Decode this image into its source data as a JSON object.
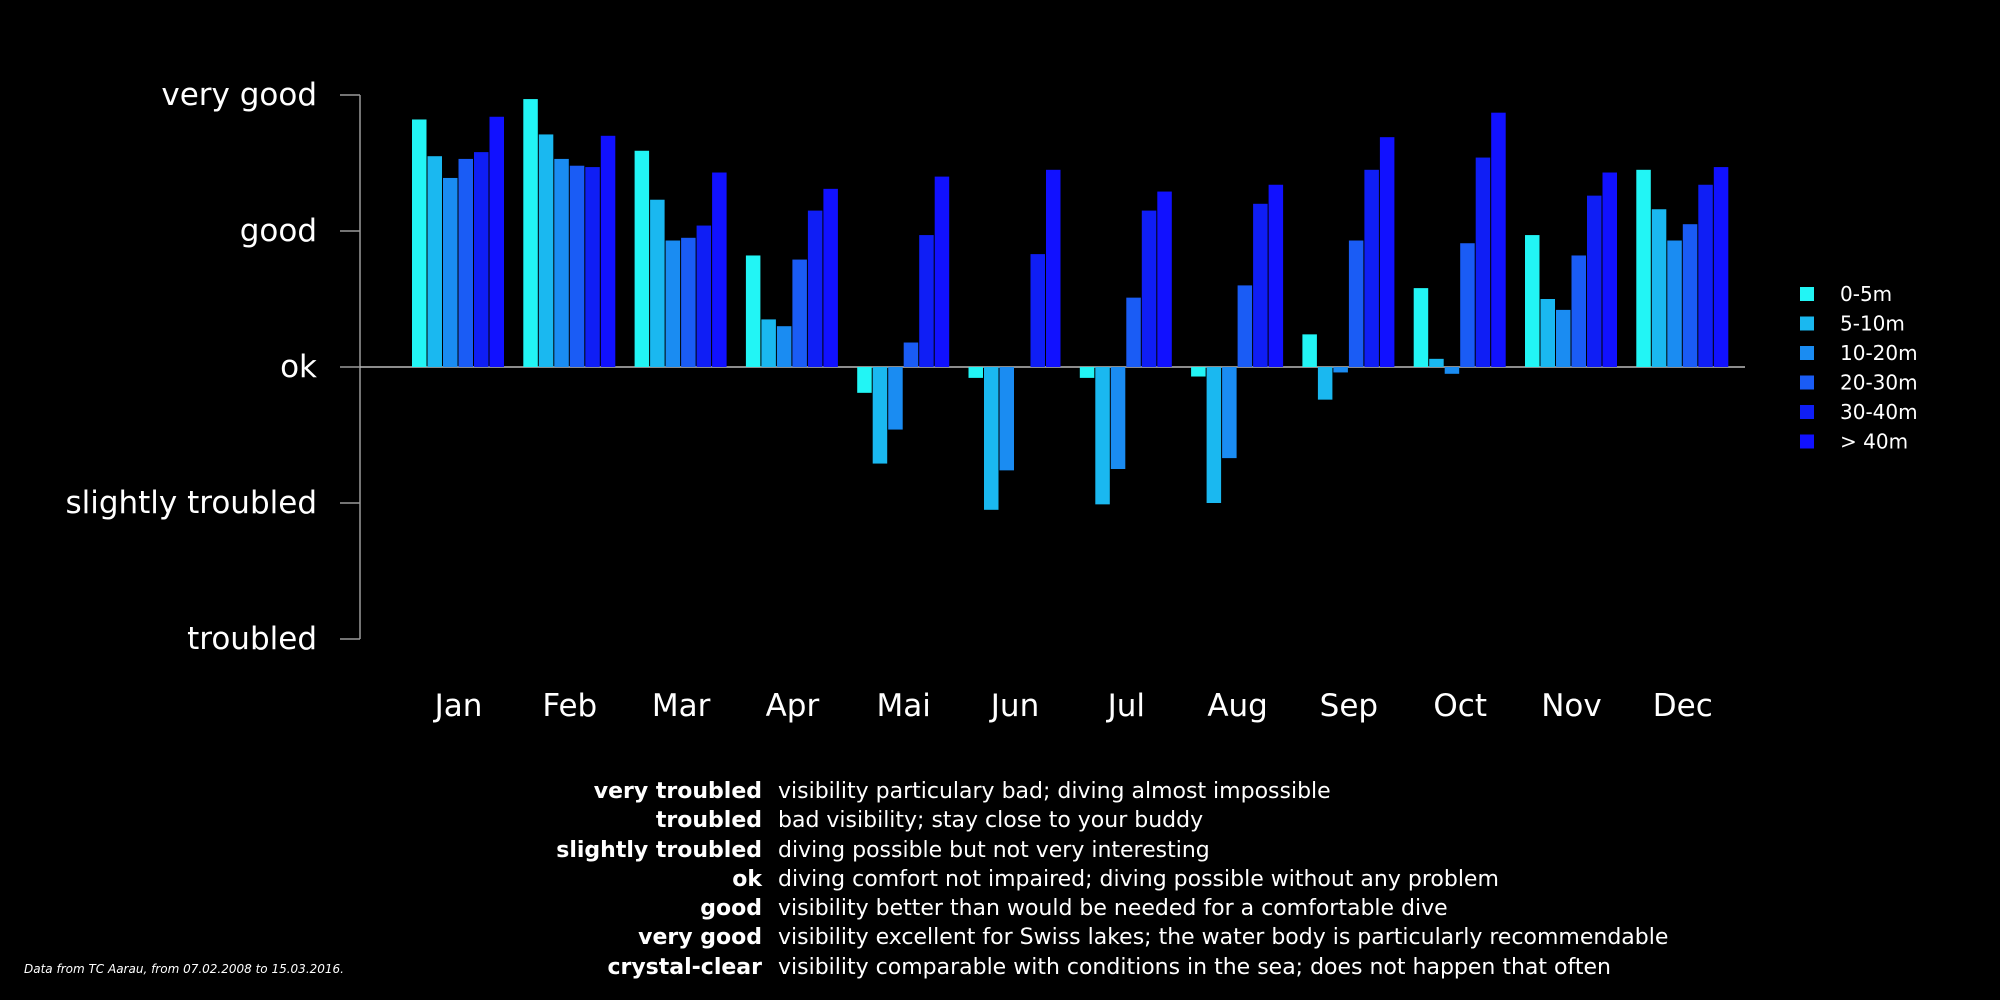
{
  "chart_data": {
    "type": "bar",
    "categories": [
      "Jan",
      "Feb",
      "Mar",
      "Apr",
      "Mai",
      "Jun",
      "Jul",
      "Aug",
      "Sep",
      "Oct",
      "Nov",
      "Dec"
    ],
    "y_ticks": [
      {
        "value": -2,
        "label": "troubled"
      },
      {
        "value": -1,
        "label": "slightly troubled"
      },
      {
        "value": 0,
        "label": "ok"
      },
      {
        "value": 1,
        "label": "good"
      },
      {
        "value": 2,
        "label": "very good"
      }
    ],
    "ylim": [
      -2,
      2
    ],
    "legend_position": "right",
    "series": [
      {
        "name": "0-5m",
        "color": "#22f5f5",
        "values": [
          1.82,
          1.97,
          1.59,
          0.82,
          -0.19,
          -0.08,
          -0.08,
          -0.07,
          0.24,
          0.58,
          0.97,
          1.45
        ]
      },
      {
        "name": "5-10m",
        "color": "#1ab8f0",
        "values": [
          1.55,
          1.71,
          1.23,
          0.35,
          -0.71,
          -1.05,
          -1.01,
          -1.0,
          -0.24,
          0.06,
          0.5,
          1.16
        ]
      },
      {
        "name": "10-20m",
        "color": "#1a8cf2",
        "values": [
          1.39,
          1.53,
          0.93,
          0.3,
          -0.46,
          -0.76,
          -0.75,
          -0.67,
          -0.04,
          -0.05,
          0.42,
          0.93
        ]
      },
      {
        "name": "20-30m",
        "color": "#1a5cf5",
        "values": [
          1.53,
          1.48,
          0.95,
          0.79,
          0.18,
          0,
          0.51,
          0.6,
          0.93,
          0.91,
          0.82,
          1.05
        ]
      },
      {
        "name": "30-40m",
        "color": "#0f1ef5",
        "values": [
          1.58,
          1.47,
          1.04,
          1.15,
          0.97,
          0.83,
          1.15,
          1.2,
          1.45,
          1.54,
          1.26,
          1.34
        ]
      },
      {
        "name": "> 40m",
        "color": "#1111ff",
        "values": [
          1.84,
          1.7,
          1.43,
          1.31,
          1.4,
          1.45,
          1.29,
          1.34,
          1.69,
          1.87,
          1.43,
          1.47
        ]
      }
    ]
  },
  "definitions": [
    {
      "term": "very troubled",
      "text": "visibility particulary bad; diving almost impossible"
    },
    {
      "term": "troubled",
      "text": "bad visibility; stay close to your buddy"
    },
    {
      "term": "slightly troubled",
      "text": "diving possible but not very interesting"
    },
    {
      "term": "ok",
      "text": "diving comfort not impaired; diving possible without any problem"
    },
    {
      "term": "good",
      "text": "visibility better than would be needed for a comfortable dive"
    },
    {
      "term": "very good",
      "text": "visibility excellent for Swiss lakes; the water body is particularly recommendable"
    },
    {
      "term": "crystal-clear",
      "text": "visibility comparable with conditions in the sea; does not happen that often"
    }
  ],
  "source_note": "Data from TC Aarau, from 07.02.2008 to 15.03.2016."
}
